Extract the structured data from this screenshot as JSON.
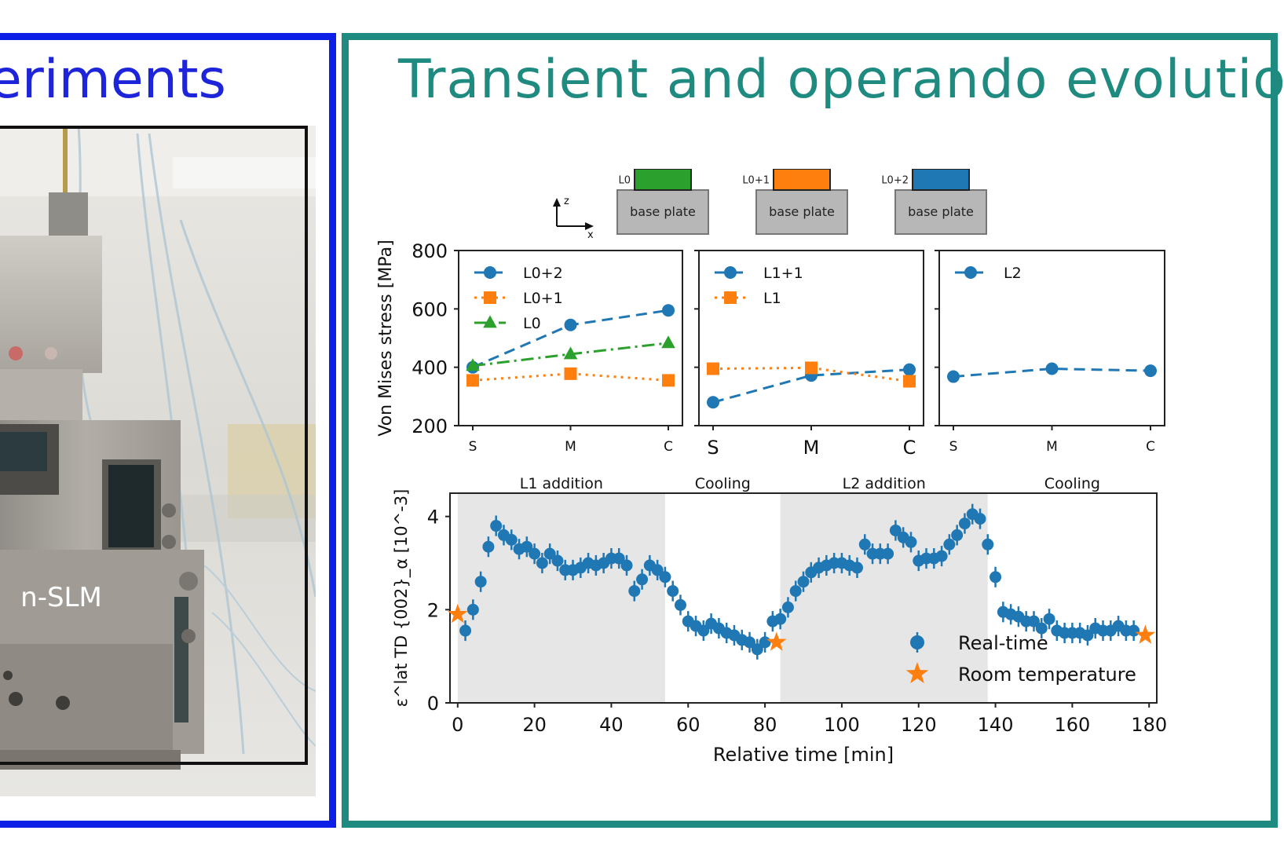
{
  "slide": {
    "left_title": "eriments",
    "right_title": "Transient and operando evolution",
    "photo_label": "n-SLM"
  },
  "diagram": {
    "axes": {
      "z": "z",
      "x": "x"
    },
    "stacks": [
      {
        "layers": [
          "L0"
        ],
        "color": "#2ca02c",
        "base": "base plate"
      },
      {
        "layers": [
          "L0+1",
          "L1"
        ],
        "color": "#ff7f0e",
        "base": "base plate"
      },
      {
        "layers": [
          "L0+2",
          "L1+1",
          "L2"
        ],
        "color": "#1f77b4",
        "base": "base plate"
      }
    ]
  },
  "colors": {
    "blue": "#1f77b4",
    "orange": "#ff7f0e",
    "green": "#2ca02c",
    "shade": "#e6e6e6"
  },
  "chart_data": [
    {
      "type": "line",
      "panel": 1,
      "ylabel": "Von Mises stress [MPa]",
      "ylim": [
        200,
        800
      ],
      "yticks": [
        200,
        400,
        600,
        800
      ],
      "categories": [
        "S",
        "M",
        "C"
      ],
      "legend": "top-left",
      "series": [
        {
          "name": "L0+2",
          "color": "#1f77b4",
          "marker": "circle",
          "style": "dashed",
          "values": [
            400,
            545,
            595
          ]
        },
        {
          "name": "L0+1",
          "color": "#ff7f0e",
          "marker": "square",
          "style": "dotted",
          "values": [
            355,
            378,
            355
          ]
        },
        {
          "name": "L0",
          "color": "#2ca02c",
          "marker": "triangle",
          "style": "dashdot",
          "values": [
            405,
            445,
            483
          ]
        }
      ]
    },
    {
      "type": "line",
      "panel": 2,
      "ylim": [
        200,
        800
      ],
      "categories": [
        "S",
        "M",
        "C"
      ],
      "legend": "top-left",
      "series": [
        {
          "name": "L1+1",
          "color": "#1f77b4",
          "marker": "circle",
          "style": "dashed",
          "values": [
            280,
            372,
            392
          ]
        },
        {
          "name": "L1",
          "color": "#ff7f0e",
          "marker": "square",
          "style": "dotted",
          "values": [
            395,
            398,
            352
          ]
        }
      ]
    },
    {
      "type": "line",
      "panel": 3,
      "ylim": [
        200,
        800
      ],
      "categories": [
        "S",
        "M",
        "C"
      ],
      "legend": "top-left",
      "series": [
        {
          "name": "L2",
          "color": "#1f77b4",
          "marker": "circle",
          "style": "dashed",
          "values": [
            368,
            395,
            388
          ]
        }
      ]
    },
    {
      "type": "scatter",
      "panel": 4,
      "xlabel": "Relative time [min]",
      "ylabel": "ε^lat TD {002}_α [10^-3]",
      "xlim": [
        -2,
        182
      ],
      "ylim": [
        0,
        4.5
      ],
      "xticks": [
        0,
        20,
        40,
        60,
        80,
        100,
        120,
        140,
        160,
        180
      ],
      "yticks": [
        0,
        2,
        4
      ],
      "legend": "lower-right",
      "phases": [
        {
          "label": "L1 addition",
          "start": 0,
          "end": 54,
          "shaded": true
        },
        {
          "label": "Cooling",
          "start": 54,
          "end": 84,
          "shaded": false
        },
        {
          "label": "L2 addition",
          "start": 84,
          "end": 138,
          "shaded": true
        },
        {
          "label": "Cooling",
          "start": 138,
          "end": 182,
          "shaded": false
        }
      ],
      "series": [
        {
          "name": "Real-time",
          "color": "#1f77b4",
          "marker": "circle",
          "error": 0.22,
          "x": [
            2,
            4,
            6,
            8,
            10,
            12,
            14,
            16,
            18,
            20,
            22,
            24,
            26,
            28,
            30,
            32,
            34,
            36,
            38,
            40,
            42,
            44,
            46,
            48,
            50,
            52,
            54,
            56,
            58,
            60,
            62,
            64,
            66,
            68,
            70,
            72,
            74,
            76,
            78,
            80,
            82,
            84,
            86,
            88,
            90,
            92,
            94,
            96,
            98,
            100,
            102,
            104,
            106,
            108,
            110,
            112,
            114,
            116,
            118,
            120,
            122,
            124,
            126,
            128,
            130,
            132,
            134,
            136,
            138,
            140,
            142,
            144,
            146,
            148,
            150,
            152,
            154,
            156,
            158,
            160,
            162,
            164,
            166,
            168,
            170,
            172,
            174,
            176
          ],
          "y": [
            1.55,
            2.0,
            2.6,
            3.35,
            3.8,
            3.6,
            3.5,
            3.3,
            3.35,
            3.2,
            3.0,
            3.2,
            3.05,
            2.85,
            2.85,
            2.9,
            3.0,
            2.95,
            3.0,
            3.1,
            3.1,
            2.95,
            2.4,
            2.65,
            2.95,
            2.85,
            2.7,
            2.4,
            2.1,
            1.75,
            1.65,
            1.55,
            1.7,
            1.6,
            1.5,
            1.45,
            1.35,
            1.3,
            1.15,
            1.3,
            1.75,
            1.8,
            2.05,
            2.4,
            2.6,
            2.8,
            2.9,
            2.95,
            3.0,
            3.0,
            2.95,
            2.9,
            3.4,
            3.2,
            3.2,
            3.2,
            3.7,
            3.55,
            3.45,
            3.05,
            3.1,
            3.1,
            3.15,
            3.4,
            3.6,
            3.85,
            4.05,
            3.95,
            3.4,
            2.7,
            1.95,
            1.9,
            1.85,
            1.75,
            1.75,
            1.6,
            1.8,
            1.55,
            1.5,
            1.5,
            1.5,
            1.45,
            1.6,
            1.55,
            1.55,
            1.65,
            1.55,
            1.55
          ]
        },
        {
          "name": "Room temperature",
          "color": "#ff7f0e",
          "marker": "star",
          "x": [
            0,
            83,
            179
          ],
          "y": [
            1.9,
            1.3,
            1.45
          ]
        }
      ]
    }
  ]
}
